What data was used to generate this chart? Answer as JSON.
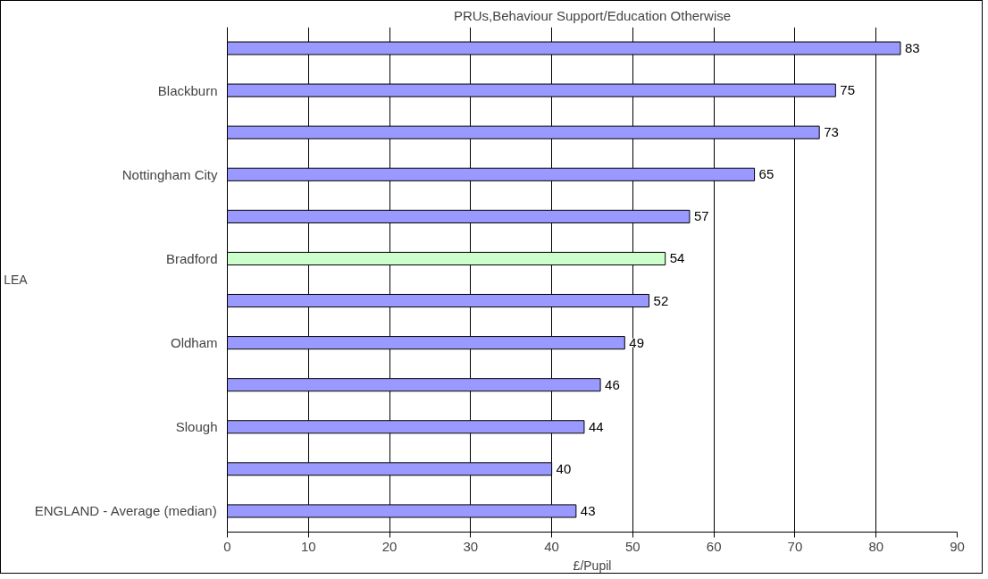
{
  "chart_data": {
    "type": "bar",
    "orientation": "horizontal",
    "title": "PRUs,Behaviour Support/Education Otherwise",
    "categories": [
      null,
      "Blackburn",
      null,
      "Nottingham City",
      null,
      "Bradford",
      null,
      "Oldham",
      null,
      "Slough",
      null,
      "ENGLAND - Average (median)"
    ],
    "values": [
      83,
      75,
      73,
      65,
      57,
      54,
      52,
      49,
      46,
      44,
      40,
      43
    ],
    "colors": [
      "#9999ff",
      "#9999ff",
      "#9999ff",
      "#9999ff",
      "#9999ff",
      "#ccffcc",
      "#9999ff",
      "#9999ff",
      "#9999ff",
      "#9999ff",
      "#9999ff",
      "#9999ff"
    ],
    "xlim": [
      0,
      90
    ],
    "xticks": [
      0,
      10,
      20,
      30,
      40,
      50,
      60,
      70,
      80,
      90
    ],
    "xlabel": "£/Pupil",
    "ylabel": "LEA",
    "grid": "x",
    "data_labels": true
  }
}
